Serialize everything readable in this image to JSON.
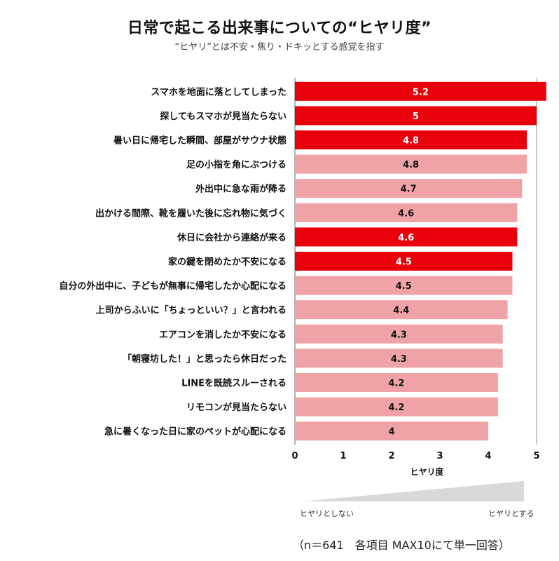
{
  "title": "日常で起こる出来事についての“ヒヤリ度”",
  "subtitle": "“ヒヤリ”とは不安・焦り・ドキッとする感覚を指す",
  "scale": {
    "low_label": "ヒヤリとしない",
    "high_label": "ヒヤリとする"
  },
  "footnote": "（n＝641　各項目 MAX10にて単一回答）",
  "colors": {
    "highlight": "#e8000b",
    "normal": "#f0a3a6",
    "highlight_text": "#ffffff",
    "normal_text": "#111111",
    "axis": "#999999",
    "wedge": "#d9d9d9"
  },
  "chart_data": {
    "type": "bar",
    "orientation": "horizontal",
    "xlabel": "ヒヤリ度",
    "xlim": [
      0,
      5
    ],
    "xticks": [
      0,
      1,
      2,
      3,
      4,
      5
    ],
    "categories": [
      "スマホを地面に落としてしまった",
      "探してもスマホが見当たらない",
      "暑い日に帰宅した瞬間、部屋がサウナ状態",
      "足の小指を角にぶつける",
      "外出中に急な雨が降る",
      "出かける間際、靴を履いた後に忘れ物に気づく",
      "休日に会社から連絡が来る",
      "家の鍵を閉めたか不安になる",
      "自分の外出中に、子どもが無事に帰宅したか心配になる",
      "上司からふいに「ちょっといい？」と言われる",
      "エアコンを消したか不安になる",
      "「朝寝坊した！」と思ったら休日だった",
      "LINEを既読スルーされる",
      "リモコンが見当たらない",
      "急に暑くなった日に家のペットが心配になる"
    ],
    "values": [
      5.2,
      5,
      4.8,
      4.8,
      4.7,
      4.6,
      4.6,
      4.5,
      4.5,
      4.4,
      4.3,
      4.3,
      4.2,
      4.2,
      4
    ],
    "highlighted": [
      true,
      true,
      true,
      false,
      false,
      false,
      true,
      true,
      false,
      false,
      false,
      false,
      false,
      false,
      false
    ],
    "grid": false,
    "legend": "none"
  }
}
